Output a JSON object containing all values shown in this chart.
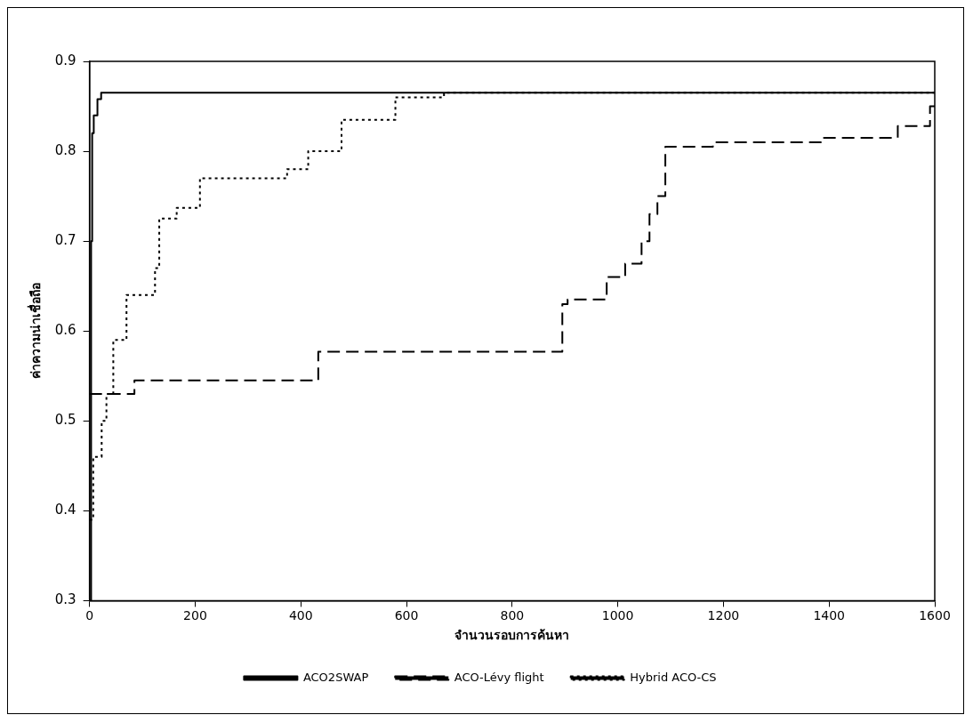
{
  "chart_data": {
    "type": "step",
    "xlabel": "จำนวนรอบการค้นหา",
    "ylabel": "ค่าความน่าเชื่อถือ",
    "xlim": [
      0,
      1600
    ],
    "xticks": [
      0,
      200,
      400,
      600,
      800,
      1000,
      1200,
      1400,
      1600
    ],
    "ylim": [
      0.3,
      0.9
    ],
    "yticks": [
      0.3,
      0.4,
      0.5,
      0.6,
      0.7,
      0.8,
      0.9
    ],
    "grid": false,
    "legend": "bottom",
    "series": [
      {
        "name": "ACO2SWAP",
        "color": "#000000",
        "line_style": "solid",
        "x": [
          0,
          3,
          5,
          8,
          15,
          22,
          1600
        ],
        "values": [
          0.3,
          0.7,
          0.82,
          0.84,
          0.858,
          0.865,
          0.865
        ]
      },
      {
        "name": "ACO-Lévy flight",
        "color": "#000000",
        "line_style": "dashed",
        "x": [
          0,
          85,
          433,
          895,
          905,
          979,
          1014,
          1045,
          1060,
          1075,
          1090,
          1180,
          1388,
          1530,
          1591,
          1600
        ],
        "values": [
          0.53,
          0.545,
          0.577,
          0.63,
          0.635,
          0.66,
          0.675,
          0.7,
          0.73,
          0.75,
          0.805,
          0.81,
          0.815,
          0.828,
          0.85,
          0.85
        ]
      },
      {
        "name": "Hybrid ACO-CS",
        "color": "#000000",
        "line_style": "dotted",
        "x": [
          0,
          7,
          23,
          32,
          45,
          70,
          124,
          132,
          165,
          209,
          374,
          414,
          477,
          579,
          671,
          1600
        ],
        "values": [
          0.39,
          0.46,
          0.5,
          0.53,
          0.59,
          0.64,
          0.67,
          0.725,
          0.737,
          0.77,
          0.78,
          0.8,
          0.835,
          0.86,
          0.865,
          0.865
        ]
      }
    ]
  }
}
